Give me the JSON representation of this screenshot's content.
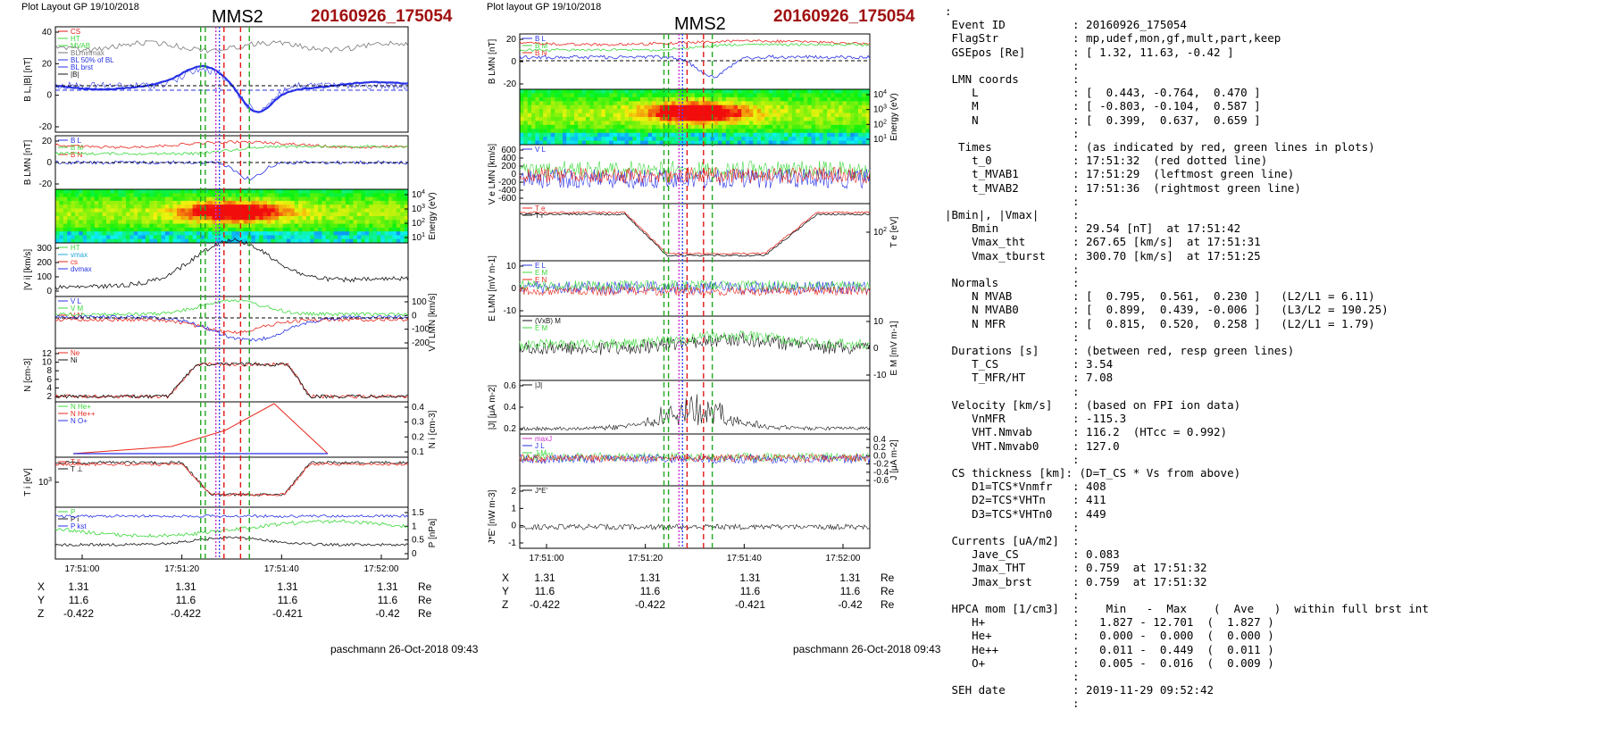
{
  "colors": {
    "event_red": "#a01010",
    "line_red": "#e8281e",
    "line_green": "#3cd83c",
    "line_blue": "#2832e6",
    "line_black": "#111111",
    "line_gray": "#777777",
    "dashed_green": "#22a822",
    "dashed_red": "#e01818",
    "dotted_magenta": "#cc33cc",
    "dotted_blue": "#3344ff"
  },
  "left_plot": {
    "header": "Plot Layout GP 19/10/2018",
    "spacecraft": "MMS2",
    "event": "20160926_175054",
    "panels": {
      "b_total": {
        "ylabel": "B_L,|B| [nT]",
        "yticks": [
          "40",
          "20",
          "0",
          "-20"
        ],
        "legend": [
          "CS",
          "HT",
          "MVAB",
          "BLminmax",
          "BL 50% of BL",
          "BL brst",
          "|B|"
        ]
      },
      "b_lmn": {
        "ylabel": "B_LMN [nT]",
        "yticks": [
          "20",
          "0",
          "-20"
        ],
        "legend": [
          "B_L",
          "B_M",
          "B_N"
        ]
      },
      "spectrogram": {
        "ylabel": "Energy (eV)",
        "yticks": [
          "10^4",
          "10^3",
          "10^2",
          "10^1"
        ]
      },
      "vi_mag": {
        "ylabel": "|V_i| [km/s]",
        "yticks": [
          "300",
          "200",
          "100",
          "0"
        ],
        "legend": [
          "HT",
          "vmax",
          "cs",
          "dvmax"
        ]
      },
      "vi_lmn": {
        "ylabel": "V_i LMN [km/s]",
        "yticks": [
          "100",
          "0",
          "-100",
          "-200"
        ],
        "legend": [
          "V_L",
          "V_M",
          "V_N"
        ]
      },
      "density": {
        "ylabel": "N [cm^-3]",
        "yticks": [
          "12",
          "10",
          "8",
          "6",
          "4",
          "2"
        ],
        "legend": [
          "Ne",
          "Ni"
        ]
      },
      "ion_species": {
        "ylabel": "N_i [cm^-3]",
        "yticks": [
          "0.4",
          "0.3",
          "0.2",
          "0.1"
        ],
        "legend": [
          "N He+",
          "N He++",
          "N O+"
        ]
      },
      "ti": {
        "ylabel": "T_i [eV]",
        "yticks": [
          "10^3"
        ],
        "legend": [
          "T_||",
          "T_⊥"
        ]
      },
      "pressure": {
        "ylabel": "P [nPa]",
        "yticks": [
          "1.5",
          "1",
          "0.5",
          "0"
        ],
        "legend": [
          "P",
          "P_i",
          "P_kst"
        ]
      }
    },
    "time_ticks": [
      "17:51:00",
      "17:51:20",
      "17:51:40",
      "17:52:00"
    ],
    "coord_rows": [
      {
        "label": "X",
        "values": [
          "1.31",
          "1.31",
          "1.31",
          "1.31"
        ],
        "unit": "Re"
      },
      {
        "label": "Y",
        "values": [
          "11.6",
          "11.6",
          "11.6",
          "11.6"
        ],
        "unit": "Re"
      },
      {
        "label": "Z",
        "values": [
          "-0.422",
          "-0.422",
          "-0.421",
          "-0.42"
        ],
        "unit": "Re"
      }
    ],
    "footer": "paschmann 26-Oct-2018 09:43"
  },
  "middle_plot": {
    "header": "Plot layout GP 19/10/2018",
    "spacecraft": "MMS2",
    "event": "20160926_175054",
    "panels": {
      "b_lmn": {
        "ylabel": "B_LMN [nT]",
        "yticks": [
          "20",
          "0",
          "-20"
        ],
        "legend": [
          "B_L",
          "B_M",
          "B_N"
        ]
      },
      "spectrogram": {
        "ylabel": "Energy (eV)",
        "yticks": [
          "10^4",
          "10^3",
          "10^2",
          "10^1"
        ]
      },
      "ve_lmn": {
        "ylabel": "V_e LMN [km/s]",
        "yticks": [
          "600",
          "400",
          "200",
          "0",
          "-200",
          "-400",
          "-600"
        ],
        "legend": [
          "V_L"
        ]
      },
      "te": {
        "ylabel": "T_e [eV]",
        "yticks": [
          "10^2"
        ],
        "legend": [
          "T_e",
          "T_i"
        ]
      },
      "e_lmn": {
        "ylabel": "E_LMN [mV m^-1]",
        "yticks": [
          "10",
          "0",
          "-10"
        ],
        "legend": [
          "E_L",
          "E_M",
          "E_N"
        ]
      },
      "em": {
        "ylabel": "E_M [mV m^-1]",
        "yticks": [
          "10",
          "0",
          "-10"
        ],
        "legend": [
          "(VxB)_M",
          "E_M"
        ]
      },
      "j_mag": {
        "ylabel": "|J| [μA m^-2]",
        "yticks": [
          "0.6",
          "0.4",
          "0.2"
        ],
        "legend": [
          "|J|"
        ]
      },
      "j_lmn": {
        "ylabel": "J [μA m^-2]",
        "yticks": [
          "0.4",
          "0.2",
          "0.0",
          "-0.2",
          "-0.4",
          "-0.6"
        ],
        "legend": [
          "maxJ",
          "J_L",
          "J_M",
          "J_N"
        ]
      },
      "jdote": {
        "ylabel": "J*E' [nW m^-3]",
        "yticks": [
          "2",
          "1",
          "0",
          "-1"
        ],
        "legend": [
          "J*E'"
        ]
      }
    },
    "time_ticks": [
      "17:51:00",
      "17:51:20",
      "17:51:40",
      "17:52:00"
    ],
    "coord_rows": [
      {
        "label": "X",
        "values": [
          "1.31",
          "1.31",
          "1.31",
          "1.31"
        ],
        "unit": "Re"
      },
      {
        "label": "Y",
        "values": [
          "11.6",
          "11.6",
          "11.6",
          "11.6"
        ],
        "unit": "Re"
      },
      {
        "label": "Z",
        "values": [
          "-0.422",
          "-0.422",
          "-0.421",
          "-0.42"
        ],
        "unit": "Re"
      }
    ],
    "footer": "paschmann 26-Oct-2018 09:43"
  },
  "summary_lines": [
    ":",
    " Event ID          : 20160926_175054",
    " FlagStr           : mp,udef,mon,gf,mult,part,keep",
    " GSEpos [Re]       : [ 1.32, 11.63, -0.42 ]",
    "                   :",
    " LMN coords        :",
    "    L              : [  0.443, -0.764,  0.470 ]",
    "    M              : [ -0.803, -0.104,  0.587 ]",
    "    N              : [  0.399,  0.637,  0.659 ]",
    "                   :",
    "  Times            : (as indicated by red, green lines in plots)",
    "    t_0            : 17:51:32  (red dotted line)",
    "    t_MVAB1        : 17:51:29  (leftmost green line)",
    "    t_MVAB2        : 17:51:36  (rightmost green line)",
    "                   :",
    "|Bmin|, |Vmax|     :",
    "    Bmin           : 29.54 [nT]  at 17:51:42",
    "    Vmax_tht       : 267.65 [km/s]  at 17:51:31",
    "    Vmax_tburst    : 300.70 [km/s]  at 17:51:25",
    "                   :",
    " Normals           :",
    "    N MVAB         : [  0.795,  0.561,  0.230 ]   (L2/L1 = 6.11)",
    "    N MVAB0        : [  0.899,  0.439, -0.006 ]   (L3/L2 = 190.25)",
    "    N MFR          : [  0.815,  0.520,  0.258 ]   (L2/L1 = 1.79)",
    "                   :",
    " Durations [s]     : (between red, resp green lines)",
    "    T_CS           : 3.54",
    "    T_MFR/HT       : 7.08",
    "                   :",
    " Velocity [km/s]   : (based on FPI ion data)",
    "    VnMFR          : -115.3",
    "    VHT.Nmvab      : 116.2  (HTcc = 0.992)",
    "    VHT.Nmvab0     : 127.0",
    "                   :",
    " CS thickness [km]: (D=T_CS * Vs from above)",
    "    D1=TCS*Vnmfr   : 408",
    "    D2=TCS*VHTn    : 411",
    "    D3=TCS*VHTn0   : 449",
    "                   :",
    " Currents [uA/m2]  :",
    "    Jave_CS        : 0.083",
    "    Jmax_THT       : 0.759  at 17:51:32",
    "    Jmax_brst      : 0.759  at 17:51:32",
    "                   :",
    " HPCA mom [1/cm3]  :    Min   -  Max    (  Ave   )  within full brst int",
    "    H+             :   1.827 - 12.701  (  1.827 )",
    "    He+            :   0.000 -  0.000  (  0.000 )",
    "    He++           :   0.011 -  0.449  (  0.011 )",
    "    O+             :   0.005 -  0.016  (  0.009 )",
    "                   :",
    " SEH date          : 2019-11-29 09:52:42",
    "                   :"
  ]
}
